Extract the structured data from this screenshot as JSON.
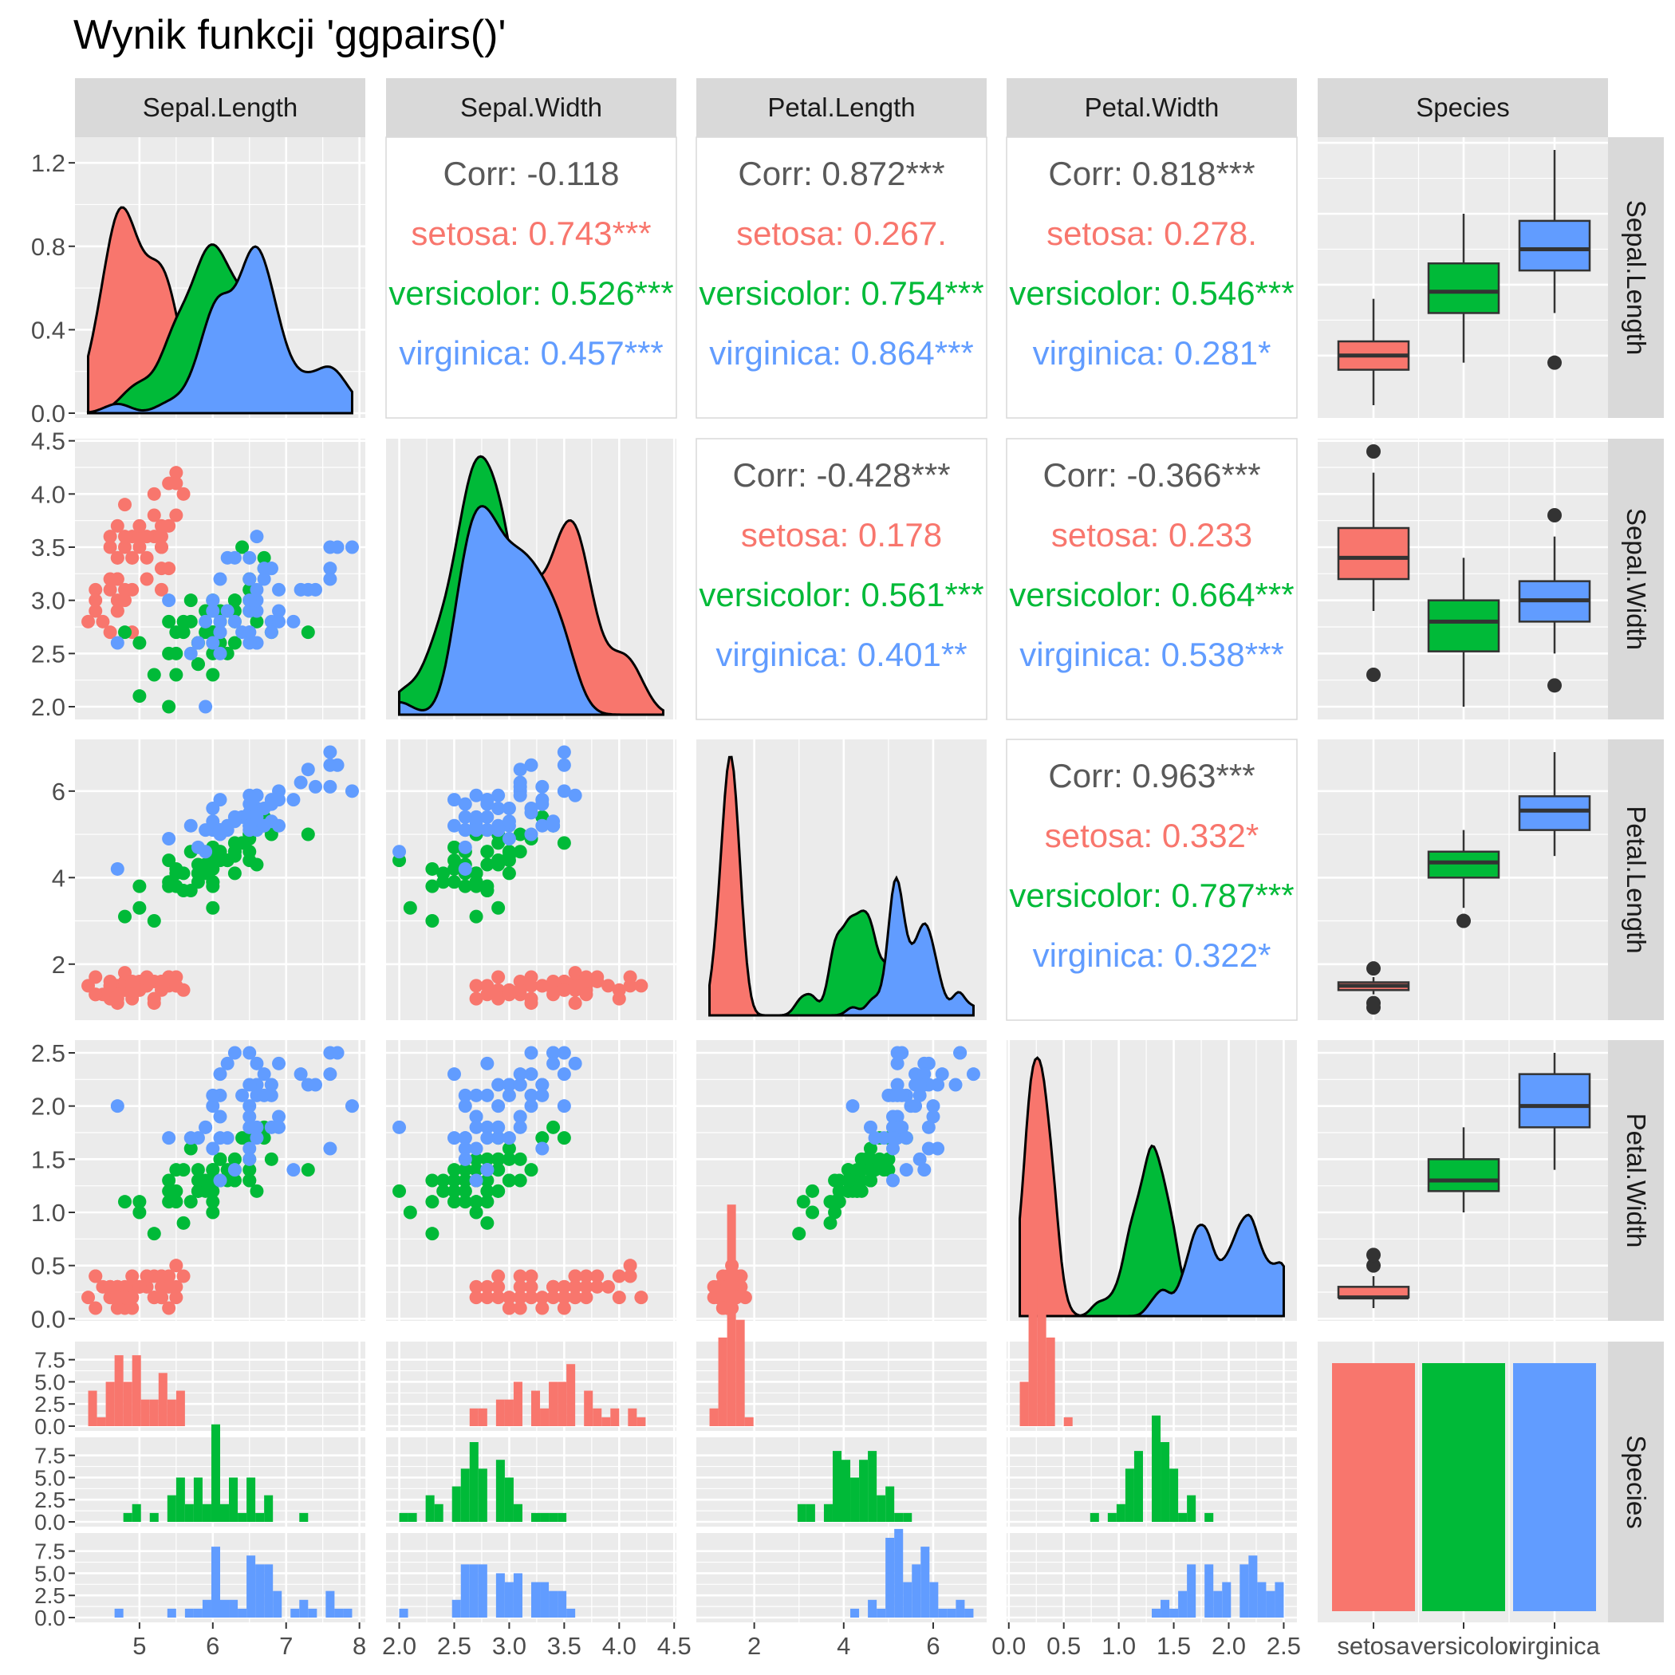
{
  "title": "Wynik funkcji 'ggpairs()'",
  "colors": {
    "setosa": "#F8766D",
    "versicolor": "#00BA38",
    "virginica": "#619CFF",
    "panel_bg": "#EBEBEB",
    "strip_bg": "#D9D9D9",
    "corr_text": "#595959"
  },
  "variables": [
    "Sepal.Length",
    "Sepal.Width",
    "Petal.Length",
    "Petal.Width",
    "Species"
  ],
  "chart_data": {
    "type": "scatter",
    "title": "Wynik funkcji 'ggpairs()'",
    "species": [
      "setosa",
      "versicolor",
      "virginica"
    ],
    "axes": {
      "Sepal.Length": {
        "lim": [
          4.3,
          7.9
        ],
        "ticks": [
          5,
          6,
          7,
          8
        ],
        "tick_labels": [
          "5",
          "6",
          "7",
          "8"
        ]
      },
      "Sepal.Width": {
        "lim": [
          2.0,
          4.4
        ],
        "ticks": [
          2.0,
          2.5,
          3.0,
          3.5,
          4.0,
          4.5
        ],
        "tick_labels": [
          "2.0",
          "2.5",
          "3.0",
          "3.5",
          "4.0",
          "4.5"
        ]
      },
      "Petal.Length": {
        "lim": [
          1.0,
          6.9
        ],
        "ticks": [
          2,
          4,
          6
        ],
        "tick_labels": [
          "2",
          "4",
          "6"
        ]
      },
      "Petal.Width": {
        "lim": [
          0.1,
          2.5
        ],
        "ticks": [
          0.0,
          0.5,
          1.0,
          1.5,
          2.0,
          2.5
        ],
        "tick_labels": [
          "0.0",
          "0.5",
          "1.0",
          "1.5",
          "2.0",
          "2.5"
        ]
      },
      "Species": {
        "tick_labels": [
          "setosa",
          "versicolor",
          "virginica"
        ]
      }
    },
    "density_axis": {
      "lim": [
        0,
        1.3
      ],
      "ticks": [
        0.0,
        0.4,
        0.8,
        1.2
      ],
      "tick_labels": [
        "0.0",
        "0.4",
        "0.8",
        "1.2"
      ]
    },
    "count_axis": {
      "lim": [
        0,
        9
      ],
      "ticks": [
        0,
        2.5,
        5,
        7.5
      ],
      "tick_labels": [
        "0.0",
        "2.5",
        "5.0",
        "7.5"
      ]
    },
    "correlations": [
      {
        "pair": [
          "Sepal.Length",
          "Sepal.Width"
        ],
        "lines": [
          {
            "label": "Corr: -0.118",
            "group": "overall"
          },
          {
            "label": "setosa: 0.743***",
            "group": "setosa"
          },
          {
            "label": "versicolor: 0.526***",
            "group": "versicolor"
          },
          {
            "label": "virginica: 0.457***",
            "group": "virginica"
          }
        ]
      },
      {
        "pair": [
          "Sepal.Length",
          "Petal.Length"
        ],
        "lines": [
          {
            "label": "Corr: 0.872***",
            "group": "overall"
          },
          {
            "label": "setosa: 0.267.",
            "group": "setosa"
          },
          {
            "label": "versicolor: 0.754***",
            "group": "versicolor"
          },
          {
            "label": "virginica: 0.864***",
            "group": "virginica"
          }
        ]
      },
      {
        "pair": [
          "Sepal.Length",
          "Petal.Width"
        ],
        "lines": [
          {
            "label": "Corr: 0.818***",
            "group": "overall"
          },
          {
            "label": "setosa: 0.278.",
            "group": "setosa"
          },
          {
            "label": "versicolor: 0.546***",
            "group": "versicolor"
          },
          {
            "label": "virginica: 0.281*",
            "group": "virginica"
          }
        ]
      },
      {
        "pair": [
          "Sepal.Width",
          "Petal.Length"
        ],
        "lines": [
          {
            "label": "Corr: -0.428***",
            "group": "overall"
          },
          {
            "label": "setosa: 0.178",
            "group": "setosa"
          },
          {
            "label": "versicolor: 0.561***",
            "group": "versicolor"
          },
          {
            "label": "virginica: 0.401**",
            "group": "virginica"
          }
        ]
      },
      {
        "pair": [
          "Sepal.Width",
          "Petal.Width"
        ],
        "lines": [
          {
            "label": "Corr: -0.366***",
            "group": "overall"
          },
          {
            "label": "setosa: 0.233",
            "group": "setosa"
          },
          {
            "label": "versicolor: 0.664***",
            "group": "versicolor"
          },
          {
            "label": "virginica: 0.538***",
            "group": "virginica"
          }
        ]
      },
      {
        "pair": [
          "Petal.Length",
          "Petal.Width"
        ],
        "lines": [
          {
            "label": "Corr: 0.963***",
            "group": "overall"
          },
          {
            "label": "setosa: 0.332*",
            "group": "setosa"
          },
          {
            "label": "versicolor: 0.787***",
            "group": "versicolor"
          },
          {
            "label": "virginica: 0.322*",
            "group": "virginica"
          }
        ]
      }
    ],
    "boxplots": {
      "Sepal.Length": {
        "setosa": {
          "min": 4.3,
          "q1": 4.8,
          "median": 5.0,
          "q3": 5.2,
          "max": 5.8,
          "outliers": []
        },
        "versicolor": {
          "min": 4.9,
          "q1": 5.6,
          "median": 5.9,
          "q3": 6.3,
          "max": 7.0,
          "outliers": []
        },
        "virginica": {
          "min": 5.6,
          "q1": 6.2,
          "median": 6.5,
          "q3": 6.9,
          "max": 7.9,
          "outliers": [
            4.9
          ]
        }
      },
      "Sepal.Width": {
        "setosa": {
          "min": 2.9,
          "q1": 3.2,
          "median": 3.4,
          "q3": 3.68,
          "max": 4.2,
          "outliers": [
            2.3,
            4.4
          ]
        },
        "versicolor": {
          "min": 2.0,
          "q1": 2.52,
          "median": 2.8,
          "q3": 3.0,
          "max": 3.4,
          "outliers": []
        },
        "virginica": {
          "min": 2.5,
          "q1": 2.8,
          "median": 3.0,
          "q3": 3.18,
          "max": 3.6,
          "outliers": [
            2.2,
            3.8
          ]
        }
      },
      "Petal.Length": {
        "setosa": {
          "min": 1.3,
          "q1": 1.4,
          "median": 1.5,
          "q3": 1.58,
          "max": 1.7,
          "outliers": [
            1.0,
            1.1,
            1.9
          ]
        },
        "versicolor": {
          "min": 3.3,
          "q1": 4.0,
          "median": 4.35,
          "q3": 4.6,
          "max": 5.1,
          "outliers": [
            3.0
          ]
        },
        "virginica": {
          "min": 4.5,
          "q1": 5.1,
          "median": 5.55,
          "q3": 5.88,
          "max": 6.9,
          "outliers": []
        }
      },
      "Petal.Width": {
        "setosa": {
          "min": 0.1,
          "q1": 0.2,
          "median": 0.2,
          "q3": 0.3,
          "max": 0.4,
          "outliers": [
            0.5,
            0.6
          ]
        },
        "versicolor": {
          "min": 1.0,
          "q1": 1.2,
          "median": 1.3,
          "q3": 1.5,
          "max": 1.8,
          "outliers": []
        },
        "virginica": {
          "min": 1.4,
          "q1": 1.8,
          "median": 2.0,
          "q3": 2.3,
          "max": 2.5,
          "outliers": []
        }
      }
    },
    "species_counts": {
      "setosa": 50,
      "versicolor": 50,
      "virginica": 50
    },
    "species_count_axis": {
      "lim": [
        0,
        52
      ]
    }
  }
}
